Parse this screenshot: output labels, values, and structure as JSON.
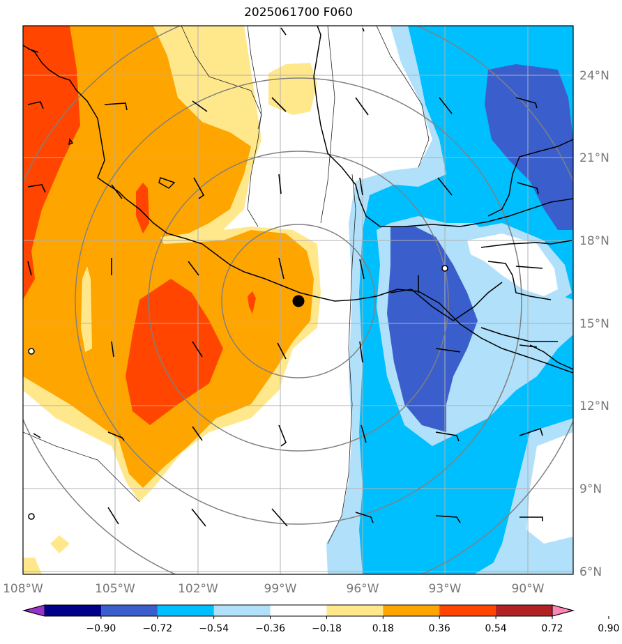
{
  "title": "2025061700 F060",
  "map": {
    "lon_range": [
      -108.0,
      -88.0
    ],
    "lat_range": [
      6.0,
      26.0
    ],
    "lon_ticks": [
      {
        "value": -108,
        "label": "108°W"
      },
      {
        "value": -105,
        "label": "105°W"
      },
      {
        "value": -102,
        "label": "102°W"
      },
      {
        "value": -99,
        "label": "99°W"
      },
      {
        "value": -96,
        "label": "96°W"
      },
      {
        "value": -93,
        "label": "93°W"
      },
      {
        "value": -90,
        "label": "90°W"
      }
    ],
    "lat_ticks": [
      {
        "value": 6,
        "label": "6°N"
      },
      {
        "value": 9,
        "label": "9°N"
      },
      {
        "value": 12,
        "label": "12°N"
      },
      {
        "value": 15,
        "label": "15°N"
      },
      {
        "value": 18,
        "label": "18°N"
      },
      {
        "value": 21,
        "label": "21°N"
      },
      {
        "value": 24,
        "label": "24°N"
      }
    ],
    "storm_center": {
      "lon": -98.3,
      "lat": 15.8
    },
    "range_ring_centers": {
      "lon": -98.3,
      "lat": 15.8
    },
    "range_rings_deg": [
      3,
      5.5,
      8,
      11
    ],
    "grid_on": true
  },
  "colorbar": {
    "levels": [
      "−0.90",
      "−0.72",
      "−0.54",
      "−0.36",
      "−0.18",
      "0.18",
      "0.36",
      "0.54",
      "0.72",
      "0.90"
    ],
    "colors": [
      "#9932cc",
      "#00008b",
      "#3a5fcd",
      "#00bfff",
      "#b0e0fa",
      "#ffffff",
      "#ffe88c",
      "#ffa500",
      "#ff4500",
      "#b22222",
      "#ff85b4"
    ],
    "extend": "both"
  },
  "colors": {
    "coast": "#000000",
    "grid": "#b0b0b0",
    "ring": "#808080",
    "tick_label": "#777777"
  }
}
